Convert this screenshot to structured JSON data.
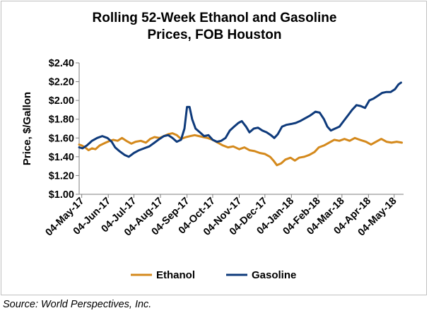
{
  "chart_data": {
    "type": "line",
    "title_line1": "Rolling 52-Week Ethanol and Gasoline",
    "title_line2": "Prices, FOB Houston",
    "ylabel": "Price, $/Gallon",
    "ylim": [
      1.0,
      2.4
    ],
    "yticks": [
      "$1.00",
      "$1.20",
      "$1.40",
      "$1.60",
      "$1.80",
      "$2.00",
      "$2.20",
      "$2.40"
    ],
    "yvalues": [
      1.0,
      1.2,
      1.4,
      1.6,
      1.8,
      2.0,
      2.2,
      2.4
    ],
    "xticks": [
      "04-May-17",
      "04-Jun-17",
      "04-Jul-17",
      "04-Aug-17",
      "04-Sep-17",
      "04-Oct-17",
      "04-Nov-17",
      "04-Dec-17",
      "04-Jan-18",
      "04-Feb-18",
      "04-Mar-18",
      "04-Apr-18",
      "04-May-18"
    ],
    "xlim": [
      "2017-05-01",
      "2018-05-15"
    ],
    "legend_position": "bottom",
    "series": [
      {
        "name": "Ethanol",
        "color": "#D4891C",
        "points": [
          [
            "2017-05-01",
            1.53
          ],
          [
            "2017-05-04",
            1.52
          ],
          [
            "2017-05-08",
            1.5
          ],
          [
            "2017-05-12",
            1.47
          ],
          [
            "2017-05-16",
            1.49
          ],
          [
            "2017-05-20",
            1.48
          ],
          [
            "2017-05-25",
            1.52
          ],
          [
            "2017-06-01",
            1.55
          ],
          [
            "2017-06-06",
            1.57
          ],
          [
            "2017-06-10",
            1.58
          ],
          [
            "2017-06-15",
            1.57
          ],
          [
            "2017-06-20",
            1.6
          ],
          [
            "2017-06-25",
            1.57
          ],
          [
            "2017-07-01",
            1.54
          ],
          [
            "2017-07-06",
            1.56
          ],
          [
            "2017-07-12",
            1.57
          ],
          [
            "2017-07-18",
            1.55
          ],
          [
            "2017-07-23",
            1.59
          ],
          [
            "2017-07-28",
            1.61
          ],
          [
            "2017-08-03",
            1.6
          ],
          [
            "2017-08-08",
            1.62
          ],
          [
            "2017-08-13",
            1.64
          ],
          [
            "2017-08-18",
            1.65
          ],
          [
            "2017-08-23",
            1.63
          ],
          [
            "2017-08-28",
            1.59
          ],
          [
            "2017-09-03",
            1.61
          ],
          [
            "2017-09-08",
            1.62
          ],
          [
            "2017-09-13",
            1.63
          ],
          [
            "2017-09-18",
            1.62
          ],
          [
            "2017-09-23",
            1.61
          ],
          [
            "2017-09-28",
            1.6
          ],
          [
            "2017-10-04",
            1.58
          ],
          [
            "2017-10-10",
            1.55
          ],
          [
            "2017-10-16",
            1.52
          ],
          [
            "2017-10-22",
            1.5
          ],
          [
            "2017-10-28",
            1.51
          ],
          [
            "2017-11-04",
            1.48
          ],
          [
            "2017-11-10",
            1.5
          ],
          [
            "2017-11-16",
            1.47
          ],
          [
            "2017-11-22",
            1.46
          ],
          [
            "2017-11-28",
            1.44
          ],
          [
            "2017-12-04",
            1.43
          ],
          [
            "2017-12-10",
            1.4
          ],
          [
            "2017-12-14",
            1.36
          ],
          [
            "2017-12-18",
            1.31
          ],
          [
            "2017-12-23",
            1.33
          ],
          [
            "2017-12-28",
            1.37
          ],
          [
            "2018-01-03",
            1.39
          ],
          [
            "2018-01-08",
            1.36
          ],
          [
            "2018-01-13",
            1.39
          ],
          [
            "2018-01-19",
            1.4
          ],
          [
            "2018-01-25",
            1.42
          ],
          [
            "2018-01-31",
            1.45
          ],
          [
            "2018-02-05",
            1.5
          ],
          [
            "2018-02-11",
            1.52
          ],
          [
            "2018-02-17",
            1.55
          ],
          [
            "2018-02-23",
            1.58
          ],
          [
            "2018-03-01",
            1.57
          ],
          [
            "2018-03-07",
            1.59
          ],
          [
            "2018-03-13",
            1.57
          ],
          [
            "2018-03-19",
            1.6
          ],
          [
            "2018-03-25",
            1.58
          ],
          [
            "2018-04-01",
            1.56
          ],
          [
            "2018-04-07",
            1.53
          ],
          [
            "2018-04-13",
            1.56
          ],
          [
            "2018-04-19",
            1.59
          ],
          [
            "2018-04-25",
            1.56
          ],
          [
            "2018-05-01",
            1.55
          ],
          [
            "2018-05-07",
            1.56
          ],
          [
            "2018-05-13",
            1.55
          ]
        ]
      },
      {
        "name": "Gasoline",
        "color": "#0E3A7B",
        "points": [
          [
            "2017-05-01",
            1.5
          ],
          [
            "2017-05-05",
            1.49
          ],
          [
            "2017-05-10",
            1.52
          ],
          [
            "2017-05-16",
            1.57
          ],
          [
            "2017-05-22",
            1.6
          ],
          [
            "2017-05-28",
            1.62
          ],
          [
            "2017-06-03",
            1.6
          ],
          [
            "2017-06-08",
            1.56
          ],
          [
            "2017-06-12",
            1.5
          ],
          [
            "2017-06-17",
            1.46
          ],
          [
            "2017-06-23",
            1.42
          ],
          [
            "2017-06-28",
            1.4
          ],
          [
            "2017-07-04",
            1.44
          ],
          [
            "2017-07-10",
            1.47
          ],
          [
            "2017-07-16",
            1.49
          ],
          [
            "2017-07-22",
            1.51
          ],
          [
            "2017-07-28",
            1.55
          ],
          [
            "2017-08-03",
            1.59
          ],
          [
            "2017-08-08",
            1.62
          ],
          [
            "2017-08-13",
            1.63
          ],
          [
            "2017-08-18",
            1.6
          ],
          [
            "2017-08-23",
            1.56
          ],
          [
            "2017-08-28",
            1.58
          ],
          [
            "2017-09-01",
            1.7
          ],
          [
            "2017-09-04",
            1.93
          ],
          [
            "2017-09-07",
            1.93
          ],
          [
            "2017-09-10",
            1.8
          ],
          [
            "2017-09-14",
            1.7
          ],
          [
            "2017-09-19",
            1.66
          ],
          [
            "2017-09-24",
            1.62
          ],
          [
            "2017-09-29",
            1.63
          ],
          [
            "2017-10-04",
            1.58
          ],
          [
            "2017-10-09",
            1.56
          ],
          [
            "2017-10-14",
            1.57
          ],
          [
            "2017-10-19",
            1.6
          ],
          [
            "2017-10-24",
            1.68
          ],
          [
            "2017-10-29",
            1.72
          ],
          [
            "2017-11-03",
            1.76
          ],
          [
            "2017-11-07",
            1.78
          ],
          [
            "2017-11-12",
            1.72
          ],
          [
            "2017-11-16",
            1.66
          ],
          [
            "2017-11-21",
            1.7
          ],
          [
            "2017-11-26",
            1.71
          ],
          [
            "2017-12-01",
            1.68
          ],
          [
            "2017-12-06",
            1.66
          ],
          [
            "2017-12-11",
            1.63
          ],
          [
            "2017-12-15",
            1.6
          ],
          [
            "2017-12-19",
            1.64
          ],
          [
            "2017-12-24",
            1.72
          ],
          [
            "2017-12-29",
            1.74
          ],
          [
            "2018-01-04",
            1.75
          ],
          [
            "2018-01-09",
            1.76
          ],
          [
            "2018-01-14",
            1.78
          ],
          [
            "2018-01-20",
            1.81
          ],
          [
            "2018-01-26",
            1.84
          ],
          [
            "2018-02-01",
            1.88
          ],
          [
            "2018-02-06",
            1.87
          ],
          [
            "2018-02-11",
            1.8
          ],
          [
            "2018-02-15",
            1.72
          ],
          [
            "2018-02-19",
            1.68
          ],
          [
            "2018-02-24",
            1.7
          ],
          [
            "2018-03-01",
            1.72
          ],
          [
            "2018-03-06",
            1.78
          ],
          [
            "2018-03-11",
            1.84
          ],
          [
            "2018-03-16",
            1.9
          ],
          [
            "2018-03-21",
            1.95
          ],
          [
            "2018-03-26",
            1.94
          ],
          [
            "2018-03-31",
            1.92
          ],
          [
            "2018-04-05",
            2.0
          ],
          [
            "2018-04-10",
            2.02
          ],
          [
            "2018-04-15",
            2.05
          ],
          [
            "2018-04-20",
            2.08
          ],
          [
            "2018-04-25",
            2.09
          ],
          [
            "2018-04-30",
            2.09
          ],
          [
            "2018-05-05",
            2.12
          ],
          [
            "2018-05-09",
            2.17
          ],
          [
            "2018-05-12",
            2.19
          ]
        ]
      }
    ]
  }
}
